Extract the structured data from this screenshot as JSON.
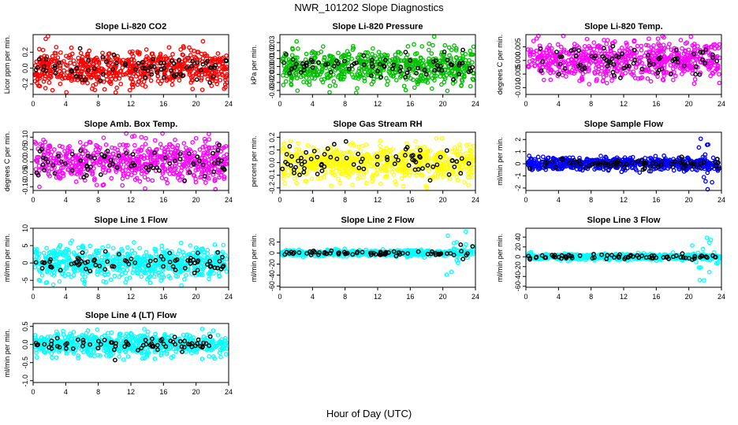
{
  "figure": {
    "title": "NWR_101202  Slope Diagnostics",
    "xlabel": "Hour of Day (UTC)"
  },
  "chart_data": [
    {
      "type": "scatter",
      "title": "Slope Li-820 CO2",
      "ylabel": "Licor ppm per min.",
      "color": "#ff0000",
      "xlim": [
        0,
        24
      ],
      "xticks": [
        0,
        4,
        8,
        12,
        16,
        20,
        24
      ],
      "xtick_labels": [
        "0",
        "4",
        "8",
        "12",
        "16",
        "20",
        "24"
      ],
      "ylim": [
        -0.33,
        0.42
      ],
      "yticks": [
        -0.2,
        0,
        0.2
      ],
      "ytick_labels": [
        "-0.2",
        "0.0",
        "0.2"
      ],
      "spread": 0.12,
      "black_spread": 0.08,
      "clip": [
        -0.32,
        0.4
      ],
      "n": 650,
      "nb": 75,
      "seed": 11
    },
    {
      "type": "scatter",
      "title": "Slope Li-820 Pressure",
      "ylabel": "kPa per min.",
      "color": "#00c000",
      "xlim": [
        0,
        24
      ],
      "xticks": [
        0,
        4,
        8,
        12,
        16,
        20,
        24
      ],
      "xtick_labels": [
        "0",
        "4",
        "8",
        "12",
        "16",
        "20",
        "24"
      ],
      "ylim": [
        -0.035,
        0.04
      ],
      "yticks": [
        -0.03,
        -0.02,
        -0.01,
        0,
        0.01,
        0.02,
        0.03
      ],
      "ytick_labels": [
        "-0.03",
        "-0.02",
        "-0.01",
        "0.00",
        "0.01",
        "0.02",
        "0.03"
      ],
      "spread": 0.011,
      "black_spread": 0.008,
      "clip": [
        -0.033,
        0.038
      ],
      "n": 650,
      "nb": 75,
      "seed": 23
    },
    {
      "type": "scatter",
      "title": "Slope Li-820 Temp.",
      "ylabel": "degrees C per min.",
      "color": "#ff00ff",
      "xlim": [
        0,
        24
      ],
      "xticks": [
        0,
        4,
        8,
        12,
        16,
        20,
        24
      ],
      "xtick_labels": [
        "0",
        "4",
        "8",
        "12",
        "16",
        "20",
        "24"
      ],
      "ylim": [
        -0.0125,
        0.0095
      ],
      "yticks": [
        -0.01,
        -0.005,
        0,
        0.005
      ],
      "ytick_labels": [
        "-0.010",
        "-0.005",
        "0.000",
        "0.005"
      ],
      "spread": 0.0035,
      "black_spread": 0.0025,
      "clip": [
        -0.012,
        0.009
      ],
      "n": 650,
      "nb": 75,
      "seed": 37
    },
    {
      "type": "scatter",
      "title": "Slope Amb. Box Temp.",
      "ylabel": "degrees C per min.",
      "color": "#ff00ff",
      "xlim": [
        0,
        24
      ],
      "xticks": [
        0,
        4,
        8,
        12,
        16,
        20,
        24
      ],
      "xtick_labels": [
        "0",
        "4",
        "8",
        "12",
        "16",
        "20",
        "24"
      ],
      "ylim": [
        -0.115,
        0.12
      ],
      "yticks": [
        -0.1,
        -0.05,
        0,
        0.05,
        0.1
      ],
      "ytick_labels": [
        "-0.10",
        "-0.05",
        "0.00",
        "0.05",
        "0.10"
      ],
      "spread": 0.04,
      "black_spread": 0.03,
      "clip": [
        -0.11,
        0.115
      ],
      "n": 650,
      "nb": 75,
      "seed": 41
    },
    {
      "type": "scatter",
      "title": "Slope Gas Stream RH",
      "ylabel": "percent per min.",
      "color": "#ffff00",
      "xlim": [
        0,
        24
      ],
      "xticks": [
        0,
        4,
        8,
        12,
        16,
        20,
        24
      ],
      "xtick_labels": [
        "0",
        "4",
        "8",
        "12",
        "16",
        "20",
        "24"
      ],
      "ylim": [
        -0.22,
        0.24
      ],
      "yticks": [
        -0.2,
        -0.1,
        0,
        0.1,
        0.2
      ],
      "ytick_labels": [
        "-0.2",
        "-0.1",
        "0.0",
        "0.1",
        "0.2"
      ],
      "spread": 0.07,
      "black_spread": 0.06,
      "clip": [
        -0.21,
        0.23
      ],
      "n": 650,
      "nb": 75,
      "seed": 53
    },
    {
      "type": "scatter",
      "title": "Slope Sample Flow",
      "ylabel": "ml/min per min.",
      "color": "#0000ff",
      "xlim": [
        0,
        24
      ],
      "xticks": [
        0,
        4,
        8,
        12,
        16,
        20,
        24
      ],
      "xtick_labels": [
        "0",
        "4",
        "8",
        "12",
        "16",
        "20",
        "24"
      ],
      "ylim": [
        -2.2,
        2.6
      ],
      "yticks": [
        -2,
        -1,
        0,
        1,
        2
      ],
      "ytick_labels": [
        "-2",
        "-1",
        "0",
        "1",
        "2"
      ],
      "spread": 0.25,
      "black_spread": 0.2,
      "clip": [
        -2.1,
        2.5
      ],
      "n": 650,
      "nb": 75,
      "seed": 61,
      "late_spread": 1.3,
      "late_from": 20
    },
    {
      "type": "scatter",
      "title": "Slope Line 1 Flow",
      "ylabel": "ml/min per min.",
      "color": "#00ffff",
      "xlim": [
        0,
        24
      ],
      "xticks": [
        0,
        4,
        8,
        12,
        16,
        20,
        24
      ],
      "xtick_labels": [
        "0",
        "4",
        "8",
        "12",
        "16",
        "20",
        "24"
      ],
      "ylim": [
        -7,
        10
      ],
      "yticks": [
        -5,
        0,
        5,
        10
      ],
      "ytick_labels": [
        "-5",
        "0",
        "5",
        "10"
      ],
      "spread": 2.2,
      "black_spread": 1.4,
      "clip": [
        -6.5,
        9.8
      ],
      "n": 650,
      "nb": 75,
      "seed": 71
    },
    {
      "type": "scatter",
      "title": "Slope Line 2 Flow",
      "ylabel": "ml/min per min.",
      "color": "#00ffff",
      "xlim": [
        0,
        24
      ],
      "xticks": [
        0,
        4,
        8,
        12,
        16,
        20,
        24
      ],
      "xtick_labels": [
        "0",
        "4",
        "8",
        "12",
        "16",
        "20",
        "24"
      ],
      "ylim": [
        -62,
        45
      ],
      "yticks": [
        -60,
        -40,
        -20,
        0,
        20
      ],
      "ytick_labels": [
        "-60",
        "-40",
        "-20",
        "0",
        "20"
      ],
      "spread": 2.5,
      "black_spread": 2,
      "clip": [
        -60,
        44
      ],
      "n": 650,
      "nb": 75,
      "seed": 83,
      "late_spread": 22,
      "late_from": 20
    },
    {
      "type": "scatter",
      "title": "Slope Line 3 Flow",
      "ylabel": "ml/min per min.",
      "color": "#00ffff",
      "xlim": [
        0,
        24
      ],
      "xticks": [
        0,
        4,
        8,
        12,
        16,
        20,
        24
      ],
      "xtick_labels": [
        "0",
        "4",
        "8",
        "12",
        "16",
        "20",
        "24"
      ],
      "ylim": [
        -62,
        58
      ],
      "yticks": [
        -60,
        -40,
        -20,
        0,
        20,
        40
      ],
      "ytick_labels": [
        "-60",
        "-40",
        "-20",
        "0",
        "20",
        "40"
      ],
      "spread": 3,
      "black_spread": 2.5,
      "clip": [
        -60,
        57
      ],
      "n": 650,
      "nb": 75,
      "seed": 97,
      "late_spread": 24,
      "late_from": 20
    },
    {
      "type": "scatter",
      "title": "Slope Line 4 (LT) Flow",
      "ylabel": "ml/min per min.",
      "color": "#00ffff",
      "xlim": [
        0,
        24
      ],
      "xticks": [
        0,
        4,
        8,
        12,
        16,
        20,
        24
      ],
      "xtick_labels": [
        "0",
        "4",
        "8",
        "12",
        "16",
        "20",
        "24"
      ],
      "ylim": [
        -1.05,
        0.58
      ],
      "yticks": [
        -1,
        -0.5,
        0,
        0.5
      ],
      "ytick_labels": [
        "-1.0",
        "-0.5",
        "0.0",
        "0.5"
      ],
      "spread": 0.15,
      "black_spread": 0.1,
      "clip": [
        -1.0,
        0.55
      ],
      "n": 650,
      "nb": 75,
      "seed": 101
    }
  ]
}
